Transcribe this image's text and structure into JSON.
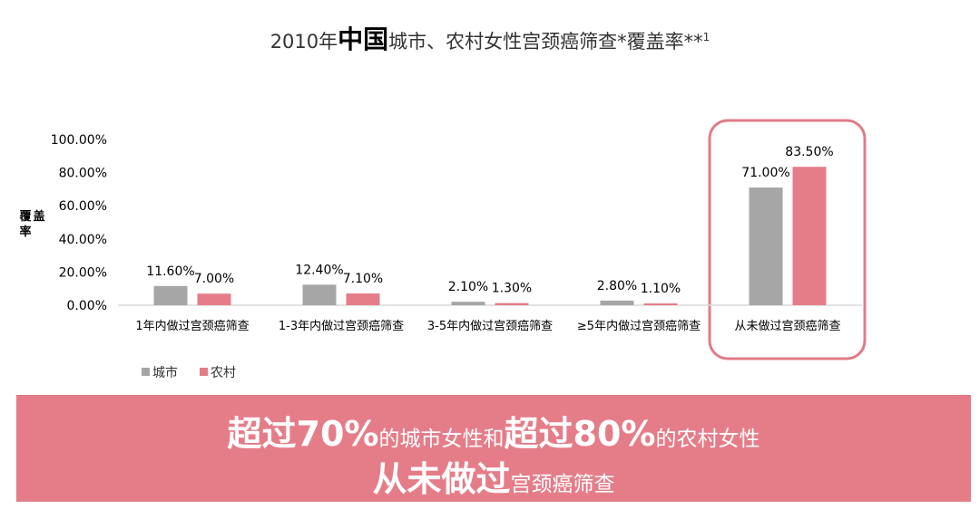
{
  "page": {
    "title_prefix": "2010年",
    "title_emph": "中国",
    "title_suffix": "城市、农村女性宫颈癌筛查*覆盖率**",
    "title_sup": "1"
  },
  "banner": {
    "line1_b1": "超过70%",
    "line1_t1": "的城市女性和",
    "line1_b2": "超过80%",
    "line1_t2": "的农村女性",
    "line2_b": "从未做过",
    "line2_t": "宫颈癌筛查"
  },
  "colors": {
    "urban": "#a6a6a6",
    "rural": "#e57d89",
    "highlight": "#e07b88",
    "banner": "#e57d89"
  },
  "chart_data": {
    "type": "bar",
    "title": "",
    "ylabel": "覆盖率",
    "xlabel": "",
    "ylim": [
      0,
      100
    ],
    "yticks": [
      "0.00%",
      "20.00%",
      "40.00%",
      "60.00%",
      "80.00%",
      "100.00%"
    ],
    "categories": [
      "1年内做过宫颈癌筛查",
      "1-3年内做过宫颈癌筛查",
      "3-5年内做过宫颈癌筛查",
      "≥5年内做过宫颈癌筛查",
      "从未做过宫颈癌筛查"
    ],
    "series": [
      {
        "name": "城市",
        "values": [
          11.6,
          12.4,
          2.1,
          2.8,
          71.0
        ],
        "labels": [
          "11.60%",
          "12.40%",
          "2.10%",
          "2.80%",
          "71.00%"
        ]
      },
      {
        "name": "农村",
        "values": [
          7.0,
          7.1,
          1.3,
          1.1,
          83.5
        ],
        "labels": [
          "7.00%",
          "7.10%",
          "1.30%",
          "1.10%",
          "83.50%"
        ]
      }
    ],
    "legend": "bottom-left",
    "grid": false,
    "highlight_category": "从未做过宫颈癌筛查"
  }
}
